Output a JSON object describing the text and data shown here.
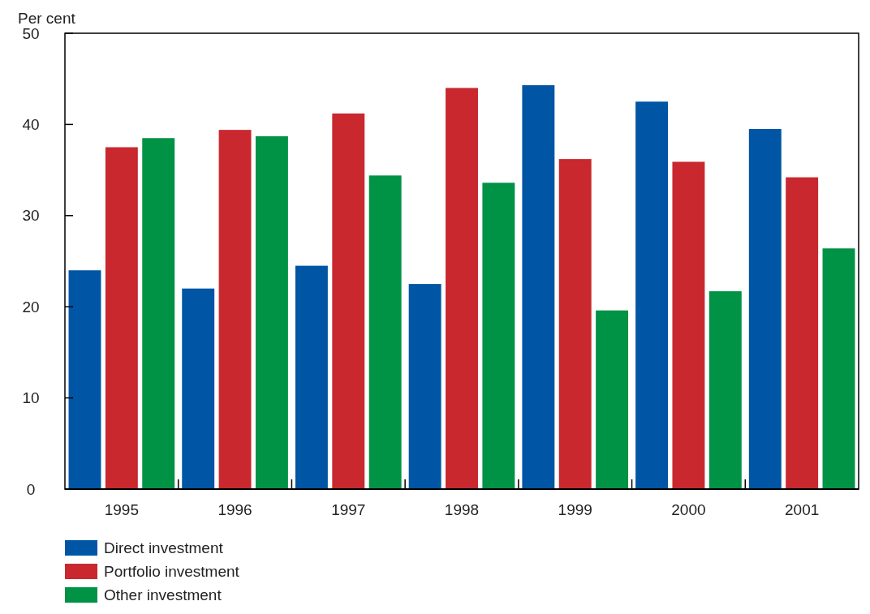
{
  "chart_data": {
    "type": "bar",
    "ylabel": "Per cent",
    "categories": [
      "1995",
      "1996",
      "1997",
      "1998",
      "1999",
      "2000",
      "2001"
    ],
    "series": [
      {
        "name": "Direct investment",
        "color": "#0055a5",
        "values": [
          24.0,
          22.0,
          24.5,
          22.5,
          44.3,
          42.5,
          39.5
        ]
      },
      {
        "name": "Portfolio investment",
        "color": "#c8282e",
        "values": [
          37.5,
          39.4,
          41.2,
          44.0,
          36.2,
          35.9,
          34.2
        ]
      },
      {
        "name": "Other investment",
        "color": "#009245",
        "values": [
          38.5,
          38.7,
          34.4,
          33.6,
          19.6,
          21.7,
          26.4
        ]
      }
    ],
    "ylim": [
      0,
      50
    ],
    "yticks": [
      0,
      10,
      20,
      30,
      40,
      50
    ],
    "grid": false,
    "legend": "bottom"
  }
}
